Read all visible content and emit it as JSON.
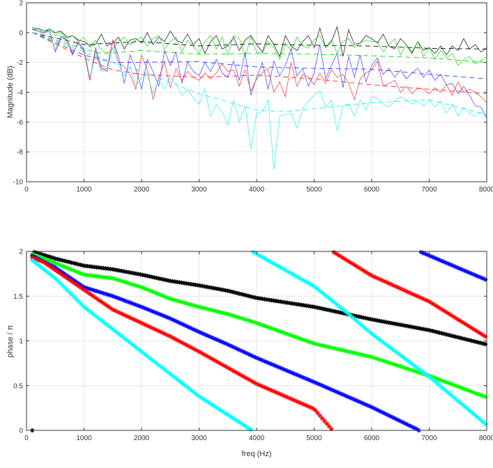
{
  "chart_data": [
    {
      "type": "line",
      "title": "",
      "xlabel": "",
      "ylabel": "Magnitude (dB)",
      "xlim": [
        0,
        8000
      ],
      "ylim": [
        -10,
        2
      ],
      "xticks": [
        0,
        1000,
        2000,
        3000,
        4000,
        5000,
        6000,
        7000,
        8000
      ],
      "yticks": [
        -10,
        -8,
        -6,
        -4,
        -2,
        0,
        2
      ],
      "grid": true,
      "x_start": 100,
      "x_step": 100,
      "series": [
        {
          "name": "black",
          "color": "#000000",
          "style": "solid",
          "values": [
            0.2,
            0.3,
            0.1,
            0.2,
            0,
            0.1,
            -0.3,
            -0.2,
            -0.5,
            -0.6,
            -0.9,
            -0.8,
            -0.1,
            -0.9,
            -0.7,
            -0.3,
            -1.1,
            -0.5,
            -0.4,
            -0.7,
            0,
            -0.8,
            -0.3,
            -0.6,
            0.1,
            -0.5,
            -0.7,
            -0.1,
            -0.8,
            -0.4,
            -1.4,
            -0.6,
            -0.2,
            -1.1,
            -0.9,
            -0.3,
            -1.2,
            -0.5,
            -0.2,
            -0.8,
            -1.3,
            -0.2,
            -0.8,
            -1.6,
            -0.2,
            -0.9,
            -1.2,
            -0.6,
            -0.2,
            -1.0,
            0.3,
            -1.0,
            -0.6,
            0.4,
            -1.6,
            0.2,
            -0.8,
            -0.7,
            -0.2,
            -0.4,
            -0.7,
            -0.1,
            -0.9,
            -1.1,
            -0.4,
            -0.8,
            -1.4,
            -0.6,
            -1.2,
            -1.0,
            -1.4,
            -0.9,
            -1.5,
            -0.9,
            -1.2,
            -0.4,
            -1.1,
            -0.8,
            -1.3,
            -1.0
          ]
        },
        {
          "name": "green",
          "color": "#00dd00",
          "style": "solid",
          "values": [
            0.4,
            0.2,
            0.1,
            0.3,
            -0.2,
            0,
            -0.4,
            -0.2,
            -0.6,
            -0.3,
            -1.0,
            -0.5,
            -1.2,
            -1.4,
            -1.1,
            -0.6,
            -0.3,
            -0.8,
            -0.5,
            -0.3,
            -0.9,
            -0.4,
            -0.2,
            -1.1,
            -0.6,
            -0.3,
            -1.3,
            -0.5,
            -0.9,
            -1.4,
            -0.6,
            -0.2,
            -1.1,
            -0.3,
            -1.5,
            -0.2,
            -0.4,
            -1.6,
            -0.3,
            -1.3,
            -1.4,
            -0.6,
            -1.0,
            -1.8,
            -0.7,
            -1.2,
            -0.3,
            -0.9,
            -1.0,
            -0.5,
            -0.2,
            -1.0,
            -0.5,
            -1.4,
            -0.6,
            -0.4,
            -1.0,
            -0.7,
            -0.5,
            -0.6,
            -0.6,
            -1.3,
            -0.8,
            -0.4,
            -1.5,
            -0.8,
            -1.3,
            -0.6,
            -1.6,
            -1.0,
            -1.8,
            -1.2,
            -1.7,
            -1.4,
            -2.2,
            -1.8,
            -1.6,
            -2.1,
            -1.9,
            -1.6
          ]
        },
        {
          "name": "blue",
          "color": "#3333ff",
          "style": "solid",
          "values": [
            0.3,
            0.1,
            0,
            0.2,
            -1.3,
            -0.3,
            -0.5,
            -1.5,
            -0.6,
            -1.2,
            -3.2,
            -1.0,
            -2.3,
            -2.6,
            -0.5,
            -1.6,
            -3.4,
            -1.5,
            -2.4,
            -3.8,
            -1.8,
            -2.6,
            -3.6,
            -1.2,
            -2.2,
            -1.3,
            -3.4,
            -2.0,
            -2.6,
            -2.9,
            -2.0,
            -2.6,
            -1.8,
            -2.7,
            -3.0,
            -1.9,
            -3.2,
            -1.3,
            -4.2,
            -3.0,
            -2.0,
            -3.8,
            -1.9,
            -2.9,
            -2.2,
            -1.1,
            -2.9,
            -2.4,
            -3.6,
            -2.7,
            -0.8,
            -3.1,
            -2.2,
            -1.4,
            -3.7,
            -1.6,
            -3.0,
            -1.5,
            -3.3,
            -2.2,
            -1.7,
            -2.8,
            -2.4,
            -3.0,
            -2.5,
            -3.1,
            -2.7,
            -2.4,
            -3.0,
            -2.5,
            -3.2,
            -2.8,
            -3.5,
            -3.4,
            -4.1,
            -3.6,
            -4.2,
            -4.9,
            -5.0,
            -5.7
          ]
        },
        {
          "name": "red",
          "color": "#ff2222",
          "style": "solid",
          "values": [
            0.2,
            0.1,
            0,
            0.1,
            -1.2,
            -0.2,
            -0.5,
            -1.4,
            -0.7,
            -1.3,
            -3.2,
            -1.2,
            -2.5,
            -2.4,
            -0.5,
            -2.0,
            -2.3,
            -2.8,
            -3.8,
            -1.5,
            -2.5,
            -4.5,
            -3.0,
            -2.0,
            -3.7,
            -2.4,
            -3.2,
            -2.6,
            -3.0,
            -3.2,
            -2.7,
            -3.1,
            -2.7,
            -2.1,
            -2.6,
            -2.5,
            -3.6,
            -2.5,
            -3.9,
            -3.1,
            -2.7,
            -2.4,
            -4.0,
            -3.3,
            -4.3,
            -2.0,
            -3.6,
            -2.8,
            -3.0,
            -3.5,
            -2.7,
            -3.4,
            -2.5,
            -3.0,
            -2.8,
            -3.4,
            -4.5,
            -3.1,
            -2.7,
            -2.5,
            -1.9,
            -3.6,
            -3.4,
            -3.2,
            -4.0,
            -3.6,
            -4.1,
            -3.7,
            -3.8,
            -4.1,
            -3.7,
            -4.0,
            -3.5,
            -4.2,
            -3.3,
            -4.0,
            -3.8,
            -4.0,
            -4.3,
            -4.7
          ]
        },
        {
          "name": "cyan",
          "color": "#22eeee",
          "style": "solid",
          "values": [
            0.4,
            0.1,
            -0.1,
            0.2,
            -1.2,
            -0.2,
            -0.4,
            -1.3,
            -0.8,
            -1.0,
            -3.0,
            -1.5,
            -2.6,
            -2.5,
            -1.0,
            -2.2,
            -2.9,
            -2.3,
            -3.6,
            -3.0,
            -2.8,
            -4.1,
            -3.2,
            -3.8,
            -3.0,
            -3.4,
            -4.2,
            -3.8,
            -4.4,
            -4.8,
            -3.8,
            -5.6,
            -4.8,
            -5.3,
            -6.2,
            -4.5,
            -6.0,
            -4.9,
            -7.8,
            -5.4,
            -5.3,
            -4.5,
            -9.2,
            -5.6,
            -5.5,
            -5.4,
            -6.4,
            -5.1,
            -4.6,
            -4.2,
            -3.9,
            -5.0,
            -4.5,
            -6.6,
            -4.9,
            -4.8,
            -5.6,
            -4.5,
            -5.2,
            -4.3,
            -4.4,
            -4.8,
            -5.0,
            -4.6,
            -4.3,
            -4.5,
            -4.8,
            -4.6,
            -4.9,
            -4.5,
            -5.0,
            -4.6,
            -5.4,
            -4.8,
            -5.6,
            -5.0,
            -5.4,
            -5.6,
            -5.3,
            -5.8
          ]
        }
      ],
      "trends": [
        {
          "name": "black-trend",
          "color": "#000000",
          "style": "dashed",
          "x": [
            100,
            1000,
            2000,
            3000,
            4000,
            5000,
            6000,
            7000,
            8000
          ],
          "y": [
            0,
            -0.8,
            -0.6,
            -0.9,
            -0.75,
            -0.85,
            -0.9,
            -1.05,
            -1.1
          ]
        },
        {
          "name": "green-trend",
          "color": "#00dd00",
          "style": "dashed",
          "x": [
            100,
            1000,
            1300,
            2000,
            3000,
            4000,
            5000,
            6000,
            7000,
            8000
          ],
          "y": [
            0,
            -1.1,
            -1.4,
            -1.2,
            -1.45,
            -1.4,
            -1.45,
            -1.55,
            -1.7,
            -2.0
          ]
        },
        {
          "name": "blue-trend",
          "color": "#3333ff",
          "style": "dashed",
          "x": [
            100,
            1000,
            1500,
            3000,
            4000,
            5000,
            6000,
            7000,
            8000
          ],
          "y": [
            0,
            -1.5,
            -2.0,
            -1.95,
            -2.3,
            -2.4,
            -2.45,
            -2.8,
            -3.1
          ]
        },
        {
          "name": "red-trend",
          "color": "#ff2222",
          "style": "dashed",
          "x": [
            100,
            1000,
            1500,
            2000,
            3000,
            4000,
            5000,
            6000,
            7000,
            8000
          ],
          "y": [
            0,
            -1.7,
            -2.5,
            -2.8,
            -3.0,
            -2.85,
            -3.1,
            -3.5,
            -3.8,
            -4.1
          ]
        },
        {
          "name": "cyan-trend",
          "color": "#22eeee",
          "style": "dashed",
          "x": [
            100,
            1000,
            1500,
            2000,
            3000,
            4000,
            4500,
            5000,
            6000,
            7000,
            8000
          ],
          "y": [
            0,
            -1.3,
            -2.0,
            -2.6,
            -4.1,
            -5.2,
            -5.3,
            -5.1,
            -4.7,
            -4.5,
            -5.5
          ]
        }
      ]
    },
    {
      "type": "scatter",
      "title": "",
      "xlabel": "freq (Hz)",
      "ylabel": "phase / π",
      "xlim": [
        0,
        8000
      ],
      "ylim": [
        0,
        2
      ],
      "xticks": [
        0,
        1000,
        2000,
        3000,
        4000,
        5000,
        6000,
        7000,
        8000
      ],
      "yticks": [
        "0",
        "0.5",
        "1",
        "1.5",
        "2"
      ],
      "grid": true,
      "marker": "asterisk",
      "wrap": 2,
      "marker_step_hz": 40,
      "series": [
        {
          "name": "black",
          "color": "#000000",
          "x": [
            100,
            500,
            1000,
            1500,
            2000,
            2500,
            3000,
            3500,
            4000,
            5000,
            6000,
            7000,
            8000
          ],
          "unwrapped_phase": [
            2.0,
            1.92,
            1.84,
            1.8,
            1.74,
            1.67,
            1.62,
            1.56,
            1.48,
            1.38,
            1.24,
            1.12,
            0.96
          ]
        },
        {
          "name": "green",
          "color": "#00ff00",
          "x": [
            100,
            500,
            1000,
            1500,
            2000,
            2500,
            3000,
            3500,
            4000,
            5000,
            6000,
            7000,
            8000
          ],
          "unwrapped_phase": [
            1.97,
            1.87,
            1.74,
            1.7,
            1.6,
            1.47,
            1.38,
            1.3,
            1.2,
            0.97,
            0.82,
            0.61,
            0.37
          ]
        },
        {
          "name": "blue",
          "color": "#0000ff",
          "x": [
            100,
            500,
            1000,
            1500,
            2000,
            2500,
            3000,
            3500,
            4000,
            5000,
            6000,
            6830,
            8000
          ],
          "unwrapped_phase": [
            1.95,
            1.82,
            1.6,
            1.5,
            1.38,
            1.25,
            1.1,
            0.96,
            0.81,
            0.54,
            0.26,
            0.0,
            -0.32
          ]
        },
        {
          "name": "red",
          "color": "#ff0000",
          "x": [
            100,
            300,
            1000,
            1500,
            2000,
            2500,
            3000,
            3500,
            4000,
            5000,
            5320,
            6000,
            7000,
            8000
          ],
          "unwrapped_phase": [
            1.93,
            1.88,
            1.57,
            1.35,
            1.2,
            1.05,
            0.88,
            0.7,
            0.52,
            0.24,
            0.0,
            -0.27,
            -0.56,
            -0.96
          ]
        },
        {
          "name": "cyan",
          "color": "#00ffff",
          "x": [
            100,
            500,
            1000,
            2000,
            3000,
            3920,
            5000,
            5600,
            6000,
            7000,
            8000
          ],
          "unwrapped_phase": [
            1.9,
            1.7,
            1.38,
            0.88,
            0.38,
            0.0,
            -0.39,
            -0.7,
            -0.92,
            -1.4,
            -1.94
          ]
        }
      ]
    }
  ]
}
